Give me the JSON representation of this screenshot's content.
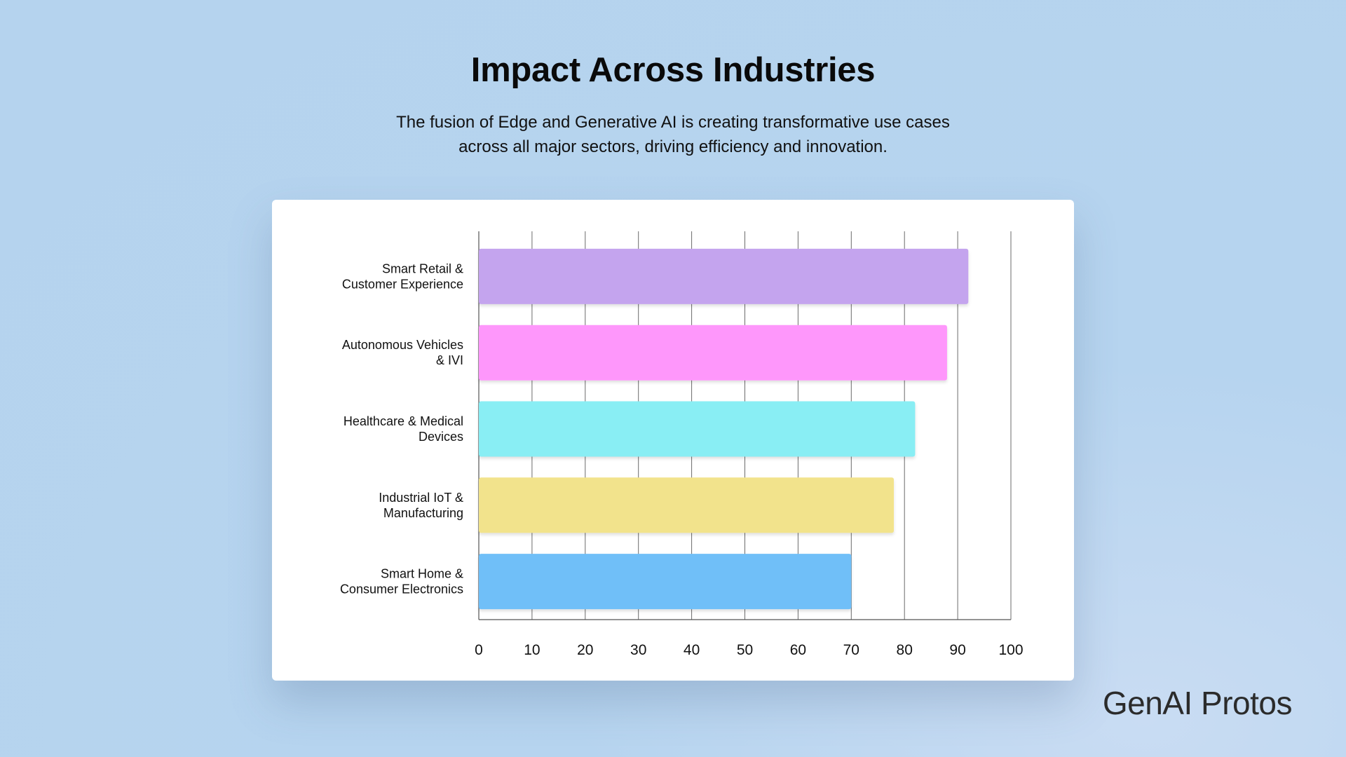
{
  "header": {
    "title": "Impact Across Industries",
    "subtitle_line1": "The fusion of Edge and Generative AI is creating transformative use cases",
    "subtitle_line2": "across all major sectors, driving efficiency and innovation."
  },
  "logo": {
    "text": "GenAI Protos"
  },
  "chart_data": {
    "type": "bar",
    "orientation": "horizontal",
    "categories": [
      [
        "Smart Retail &",
        "Customer Experience"
      ],
      [
        "Autonomous Vehicles",
        "& IVI"
      ],
      [
        "Healthcare & Medical",
        "Devices"
      ],
      [
        "Industrial IoT &",
        "Manufacturing"
      ],
      [
        "Smart Home &",
        "Consumer Electronics"
      ]
    ],
    "values": [
      92,
      88,
      82,
      78,
      70
    ],
    "colors": [
      "#c4a4ee",
      "#fe97fb",
      "#89eef4",
      "#f2e38c",
      "#6fbff8"
    ],
    "xlim": [
      0,
      100
    ],
    "xticks": [
      "0",
      "10",
      "20",
      "30",
      "40",
      "50",
      "60",
      "70",
      "80",
      "90",
      "100"
    ],
    "grid": true,
    "title": "",
    "xlabel": "",
    "ylabel": ""
  }
}
